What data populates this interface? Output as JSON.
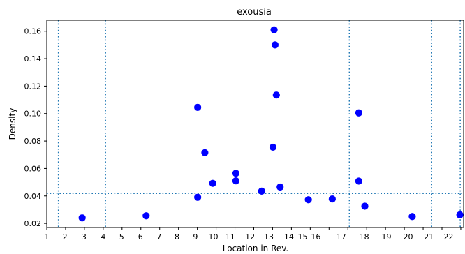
{
  "chart_data": {
    "type": "scatter",
    "title": "exousia",
    "xlabel": "Location in Rev.",
    "ylabel": "Density",
    "xlim": [
      1,
      23.15
    ],
    "ylim": [
      0.017,
      0.168
    ],
    "x_ticks": [
      1,
      2,
      3,
      4,
      5,
      6,
      7,
      8,
      9,
      10,
      11,
      12,
      13,
      14,
      15,
      16,
      17,
      18,
      19,
      20,
      21,
      22,
      23
    ],
    "x_tick_labels": [
      {
        "x": 1,
        "label": "1"
      },
      {
        "x": 1.97,
        "label": "2"
      },
      {
        "x": 2.98,
        "label": "3"
      },
      {
        "x": 4.0,
        "label": "4"
      },
      {
        "x": 4.98,
        "label": "5"
      },
      {
        "x": 5.98,
        "label": "6"
      },
      {
        "x": 6.97,
        "label": "7"
      },
      {
        "x": 7.92,
        "label": "8"
      },
      {
        "x": 8.9,
        "label": "9"
      },
      {
        "x": 9.85,
        "label": "10"
      },
      {
        "x": 10.75,
        "label": "11"
      },
      {
        "x": 11.8,
        "label": "12"
      },
      {
        "x": 12.8,
        "label": "13"
      },
      {
        "x": 13.87,
        "label": "14"
      },
      {
        "x": 14.6,
        "label": "15"
      },
      {
        "x": 15.3,
        "label": "16"
      },
      {
        "x": 16.65,
        "label": "17"
      },
      {
        "x": 17.87,
        "label": "18"
      },
      {
        "x": 19.05,
        "label": "19"
      },
      {
        "x": 20.2,
        "label": "20"
      },
      {
        "x": 21.3,
        "label": "21"
      },
      {
        "x": 22.35,
        "label": "22"
      }
    ],
    "y_ticks": [
      0.02,
      0.04,
      0.06,
      0.08,
      0.1,
      0.12,
      0.14,
      0.16
    ],
    "y_tick_labels": [
      "0.02",
      "0.04",
      "0.06",
      "0.08",
      "0.10",
      "0.12",
      "0.14",
      "0.16"
    ],
    "grid": false,
    "reference_lines": {
      "vertical_x": [
        1.62,
        4.12,
        17.08,
        21.45,
        22.97
      ],
      "horizontal_y": 0.0418,
      "color": "#1f77b4",
      "style": "dotted"
    },
    "marker_color": "#0000ff",
    "points": [
      {
        "x": 2.88,
        "y": 0.024
      },
      {
        "x": 6.28,
        "y": 0.0255
      },
      {
        "x": 9.02,
        "y": 0.039
      },
      {
        "x": 9.02,
        "y": 0.1045
      },
      {
        "x": 9.4,
        "y": 0.0715
      },
      {
        "x": 9.82,
        "y": 0.0492
      },
      {
        "x": 11.05,
        "y": 0.0565
      },
      {
        "x": 11.05,
        "y": 0.051
      },
      {
        "x": 12.42,
        "y": 0.0435
      },
      {
        "x": 13.02,
        "y": 0.0755
      },
      {
        "x": 13.08,
        "y": 0.161
      },
      {
        "x": 13.13,
        "y": 0.15
      },
      {
        "x": 13.2,
        "y": 0.1135
      },
      {
        "x": 13.4,
        "y": 0.0465
      },
      {
        "x": 14.9,
        "y": 0.0372
      },
      {
        "x": 16.17,
        "y": 0.0378
      },
      {
        "x": 17.58,
        "y": 0.1005
      },
      {
        "x": 17.58,
        "y": 0.0508
      },
      {
        "x": 17.9,
        "y": 0.0325
      },
      {
        "x": 20.42,
        "y": 0.025
      },
      {
        "x": 22.95,
        "y": 0.0262
      }
    ]
  }
}
